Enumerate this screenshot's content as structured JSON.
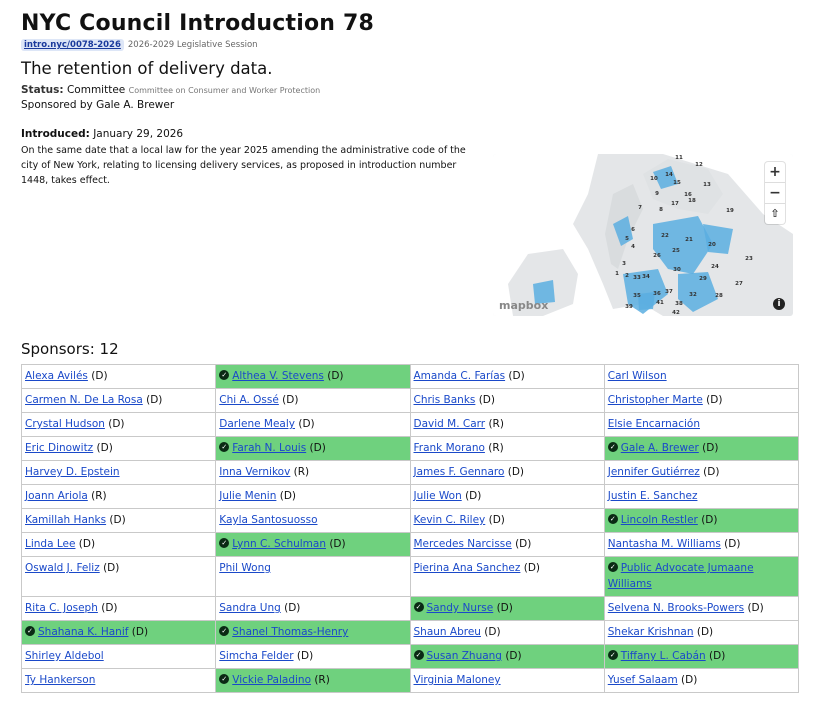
{
  "header": {
    "title": "NYC Council Introduction 78",
    "link": "intro.nyc/0078-2026",
    "session": "2026-2029 Legislative Session",
    "subtitle": "The retention of delivery data.",
    "status_label": "Status:",
    "status_value": "Committee",
    "committee": "Committee on Consumer and Worker Protection",
    "sponsored_by": "Sponsored by Gale A. Brewer",
    "introduced_label": "Introduced:",
    "introduced_value": "January 29, 2026",
    "description": "On the same date that a local law for the year 2025 amending the administrative code of the city of New York, relating to licensing delivery services, as proposed in introduction number 1448, takes effect."
  },
  "map": {
    "zoom_in": "+",
    "zoom_out": "−",
    "reset": "⇧",
    "logo": "mapbox",
    "info": "i",
    "district_labels": [
      "11",
      "12",
      "14",
      "10",
      "15",
      "13",
      "16",
      "9",
      "18",
      "17",
      "7",
      "8",
      "19",
      "6",
      "22",
      "21",
      "20",
      "5",
      "4",
      "26",
      "25",
      "3",
      "2",
      "24",
      "23",
      "1",
      "30",
      "33",
      "34",
      "29",
      "27",
      "35",
      "36",
      "37",
      "32",
      "28",
      "38",
      "39",
      "41",
      "42"
    ]
  },
  "sponsors": {
    "heading": "Sponsors: 12",
    "rows": [
      [
        {
          "name": "Alexa Avilés",
          "party": "(D)",
          "sponsor": false
        },
        {
          "name": "Althea V. Stevens",
          "party": "(D)",
          "sponsor": true
        },
        {
          "name": "Amanda C. Farías",
          "party": "(D)",
          "sponsor": false
        },
        {
          "name": "Carl Wilson",
          "party": "",
          "sponsor": false
        }
      ],
      [
        {
          "name": "Carmen N. De La Rosa",
          "party": "(D)",
          "sponsor": false
        },
        {
          "name": "Chi A. Ossé",
          "party": "(D)",
          "sponsor": false
        },
        {
          "name": "Chris Banks",
          "party": "(D)",
          "sponsor": false
        },
        {
          "name": "Christopher Marte",
          "party": "(D)",
          "sponsor": false
        }
      ],
      [
        {
          "name": "Crystal Hudson",
          "party": "(D)",
          "sponsor": false
        },
        {
          "name": "Darlene Mealy",
          "party": "(D)",
          "sponsor": false
        },
        {
          "name": "David M. Carr",
          "party": "(R)",
          "sponsor": false
        },
        {
          "name": "Elsie Encarnación",
          "party": "",
          "sponsor": false
        }
      ],
      [
        {
          "name": "Eric Dinowitz",
          "party": "(D)",
          "sponsor": false
        },
        {
          "name": "Farah N. Louis",
          "party": "(D)",
          "sponsor": true
        },
        {
          "name": "Frank Morano",
          "party": "(R)",
          "sponsor": false
        },
        {
          "name": "Gale A. Brewer",
          "party": "(D)",
          "sponsor": true
        }
      ],
      [
        {
          "name": "Harvey D. Epstein",
          "party": "",
          "sponsor": false
        },
        {
          "name": "Inna Vernikov",
          "party": "(R)",
          "sponsor": false
        },
        {
          "name": "James F. Gennaro",
          "party": "(D)",
          "sponsor": false
        },
        {
          "name": "Jennifer Gutiérrez",
          "party": "(D)",
          "sponsor": false
        }
      ],
      [
        {
          "name": "Joann Ariola",
          "party": "(R)",
          "sponsor": false
        },
        {
          "name": "Julie Menin",
          "party": "(D)",
          "sponsor": false
        },
        {
          "name": "Julie Won",
          "party": "(D)",
          "sponsor": false
        },
        {
          "name": "Justin E. Sanchez",
          "party": "",
          "sponsor": false
        }
      ],
      [
        {
          "name": "Kamillah Hanks",
          "party": "(D)",
          "sponsor": false
        },
        {
          "name": "Kayla Santosuosso",
          "party": "",
          "sponsor": false
        },
        {
          "name": "Kevin C. Riley",
          "party": "(D)",
          "sponsor": false
        },
        {
          "name": "Lincoln Restler",
          "party": "(D)",
          "sponsor": true
        }
      ],
      [
        {
          "name": "Linda Lee",
          "party": "(D)",
          "sponsor": false
        },
        {
          "name": "Lynn C. Schulman",
          "party": "(D)",
          "sponsor": true
        },
        {
          "name": "Mercedes Narcisse",
          "party": "(D)",
          "sponsor": false
        },
        {
          "name": "Nantasha M. Williams",
          "party": "(D)",
          "sponsor": false
        }
      ],
      [
        {
          "name": "Oswald J. Feliz",
          "party": "(D)",
          "sponsor": false
        },
        {
          "name": "Phil Wong",
          "party": "",
          "sponsor": false
        },
        {
          "name": "Pierina Ana Sanchez",
          "party": "(D)",
          "sponsor": false
        },
        {
          "name": "Public Advocate Jumaane Williams",
          "party": "",
          "sponsor": true
        }
      ],
      [
        {
          "name": "Rita C. Joseph",
          "party": "(D)",
          "sponsor": false
        },
        {
          "name": "Sandra Ung",
          "party": "(D)",
          "sponsor": false
        },
        {
          "name": "Sandy Nurse",
          "party": "(D)",
          "sponsor": true
        },
        {
          "name": "Selvena N. Brooks-Powers",
          "party": "(D)",
          "sponsor": false
        }
      ],
      [
        {
          "name": "Shahana K. Hanif",
          "party": "(D)",
          "sponsor": true
        },
        {
          "name": "Shanel Thomas-Henry",
          "party": "",
          "sponsor": true
        },
        {
          "name": "Shaun Abreu",
          "party": "(D)",
          "sponsor": false
        },
        {
          "name": "Shekar Krishnan",
          "party": "(D)",
          "sponsor": false
        }
      ],
      [
        {
          "name": "Shirley Aldebol",
          "party": "",
          "sponsor": false
        },
        {
          "name": "Simcha Felder",
          "party": "(D)",
          "sponsor": false
        },
        {
          "name": "Susan Zhuang",
          "party": "(D)",
          "sponsor": true
        },
        {
          "name": "Tiffany L. Cabán",
          "party": "(D)",
          "sponsor": true
        }
      ],
      [
        {
          "name": "Ty Hankerson",
          "party": "",
          "sponsor": false
        },
        {
          "name": "Vickie Paladino",
          "party": "(R)",
          "sponsor": true
        },
        {
          "name": "Virginia Maloney",
          "party": "",
          "sponsor": false
        },
        {
          "name": "Yusef Salaam",
          "party": "(D)",
          "sponsor": false
        }
      ]
    ]
  },
  "colors": {
    "sponsor_highlight": "#6fd17e",
    "link": "#1a49c9",
    "water": "#ffffff",
    "land": "#e4e6e8",
    "sponsor_district": "#5aaee0"
  }
}
